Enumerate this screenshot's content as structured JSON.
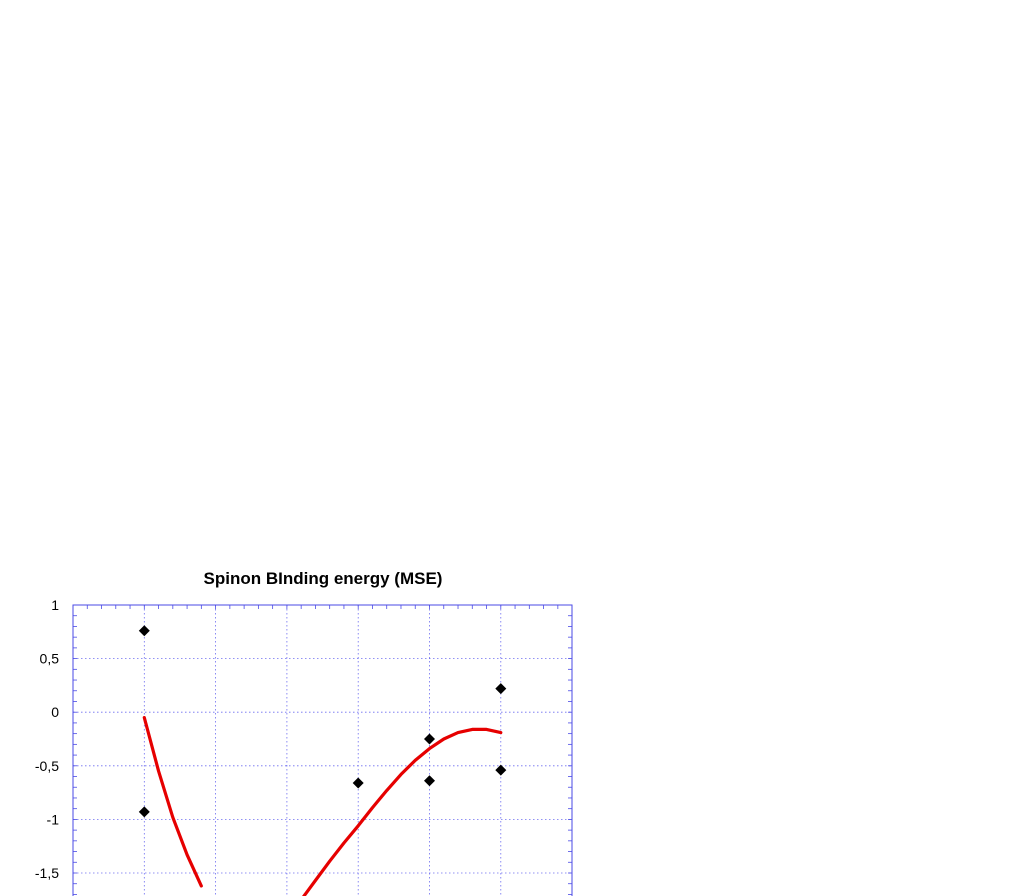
{
  "chart_data": {
    "type": "scatter",
    "title": "Spinon BInding energy (MSE)",
    "xlabel": "",
    "ylabel": "",
    "xlim": [
      0,
      7
    ],
    "ylim": [
      -1.5,
      1
    ],
    "y_ticks": [
      1,
      0.5,
      0,
      -0.5,
      -1,
      -1.5
    ],
    "y_tick_labels": [
      "1",
      "0,5",
      "0",
      "-0,5",
      "-1",
      "-1,5"
    ],
    "x_tick_labels": [],
    "grid": true,
    "colors": {
      "points": "#000000",
      "fit_line": "#e60000",
      "grid": "#6d6df0",
      "frame": "#4a4ae6"
    },
    "series": [
      {
        "kind": "points",
        "marker": "diamond",
        "x": [
          1,
          1,
          4,
          5,
          5,
          6,
          6
        ],
        "y": [
          0.76,
          -0.93,
          -0.66,
          -0.25,
          -0.64,
          0.22,
          -0.54
        ]
      },
      {
        "kind": "fit-line",
        "x": [
          1,
          1.2,
          1.4,
          1.6,
          1.8,
          3.2,
          3.4,
          3.6,
          3.8,
          4,
          4.2,
          4.4,
          4.6,
          4.8,
          5,
          5.2,
          5.4,
          5.6,
          5.8,
          6
        ],
        "y": [
          -0.05,
          -0.55,
          -0.98,
          -1.33,
          -1.62,
          -1.75,
          -1.57,
          -1.39,
          -1.22,
          -1.06,
          -0.89,
          -0.73,
          -0.58,
          -0.45,
          -0.34,
          -0.25,
          -0.19,
          -0.16,
          -0.16,
          -0.19
        ]
      }
    ]
  }
}
